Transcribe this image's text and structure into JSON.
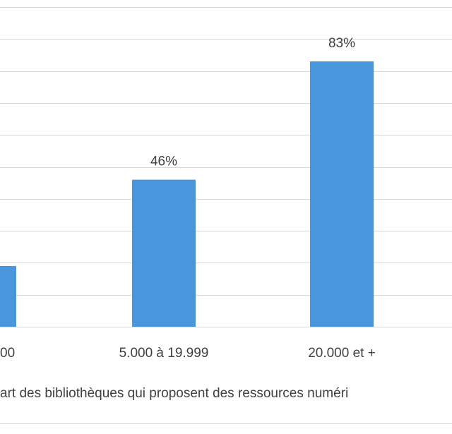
{
  "chart_data": {
    "type": "bar",
    "categories": [
      "0",
      "5.000 à 19.999",
      "20.000 et +"
    ],
    "visible_category_labels": [
      "00",
      "5.000 à 19.999",
      "20.000 et +"
    ],
    "values": [
      19,
      46,
      83
    ],
    "data_labels": [
      "",
      "46%",
      "83%"
    ],
    "unit": "%",
    "ylim": [
      0,
      100
    ],
    "grid": true,
    "bar_color": "#4a96dc",
    "gridline_color": "#d9d9d9",
    "legend": "art des bibliothèques qui proposent des ressources numéri"
  }
}
